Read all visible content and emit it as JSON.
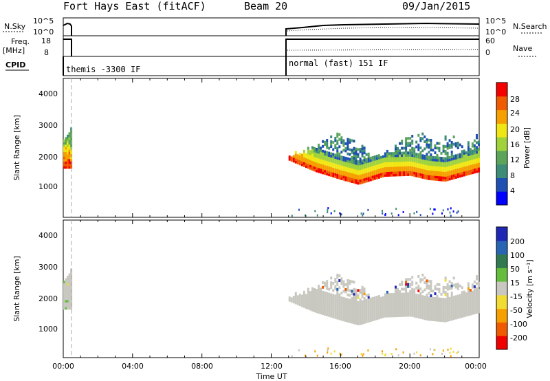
{
  "header": {
    "station": "Fort Hays East (fitACF)",
    "beam": "Beam 20",
    "date": "09/Jan/2015"
  },
  "top_panels": {
    "nsky_label": "N.Sky",
    "nsky_ticks": [
      "10^5",
      "10^0"
    ],
    "nsearch_label": "N.Search",
    "nsearch_ticks": [
      "10^5",
      "10^0"
    ],
    "freq_label": "Freq.",
    "freq_unit": "[MHz]",
    "freq_ticks": [
      "18",
      "8"
    ],
    "nave_label": "Nave",
    "nave_ticks": [
      "60",
      "0"
    ],
    "cpid_label": "CPID",
    "cpid_segments": [
      {
        "label": "themis -3300 IF",
        "start_hour": 0.0,
        "end_hour": 0.5
      },
      {
        "label": "normal (fast) 151 IF",
        "start_hour": 13.0,
        "end_hour": 24.0
      }
    ]
  },
  "power_panel": {
    "ylabel": "Slant Range [km]",
    "y_ticks": [
      "4000",
      "3000",
      "2000",
      "1000"
    ],
    "colorbar_label": "Power [dB]",
    "colorbar_ticks": [
      "28",
      "24",
      "20",
      "16",
      "12",
      "8",
      "4"
    ]
  },
  "velocity_panel": {
    "ylabel": "Slant Range [km]",
    "y_ticks": [
      "4000",
      "3000",
      "2000",
      "1000"
    ],
    "colorbar_label": "Velocity [m s⁻¹]",
    "colorbar_ticks": [
      "200",
      "100",
      "50",
      "15",
      "-15",
      "-50",
      "-100",
      "-200"
    ]
  },
  "x_axis": {
    "label": "Time UT",
    "ticks": [
      "00:00",
      "04:00",
      "08:00",
      "12:00",
      "16:00",
      "20:00",
      "00:00"
    ]
  },
  "chart_data": {
    "type": "heatmap",
    "x_range_hours": [
      0,
      24
    ],
    "y_range_km": [
      180,
      4500
    ],
    "colors": {
      "power": [
        "#0000ff",
        "#1e50b4",
        "#3c8c78",
        "#5aa55a",
        "#a0d23c",
        "#f0e614",
        "#f5a000",
        "#f05a00",
        "#f50000"
      ],
      "velocity": [
        "#1e28b4",
        "#2864b4",
        "#327850",
        "#64be3c",
        "#c8c8c0",
        "#f0dc32",
        "#f5a000",
        "#f05a00",
        "#f00000"
      ]
    },
    "echo_regions": [
      {
        "start_hour": 0.0,
        "end_hour": 0.5,
        "range_km": [
          1700,
          3000
        ],
        "power_db": "10-28",
        "velocity": "-15 to 15"
      },
      {
        "start_hour": 13.0,
        "end_hour": 24.0,
        "range_km": [
          1150,
          3000
        ],
        "power_db": "4-28",
        "velocity": "-15 to 15"
      }
    ],
    "ground_scatter_edge_km": [
      {
        "hour": 13.0,
        "km": 1950
      },
      {
        "hour": 14.5,
        "km": 1600
      },
      {
        "hour": 16.0,
        "km": 1350
      },
      {
        "hour": 17.0,
        "km": 1200
      },
      {
        "hour": 18.5,
        "km": 1450
      },
      {
        "hour": 20.0,
        "km": 1480
      },
      {
        "hour": 21.0,
        "km": 1350
      },
      {
        "hour": 22.0,
        "km": 1300
      },
      {
        "hour": 24.0,
        "km": 1600
      }
    ]
  }
}
